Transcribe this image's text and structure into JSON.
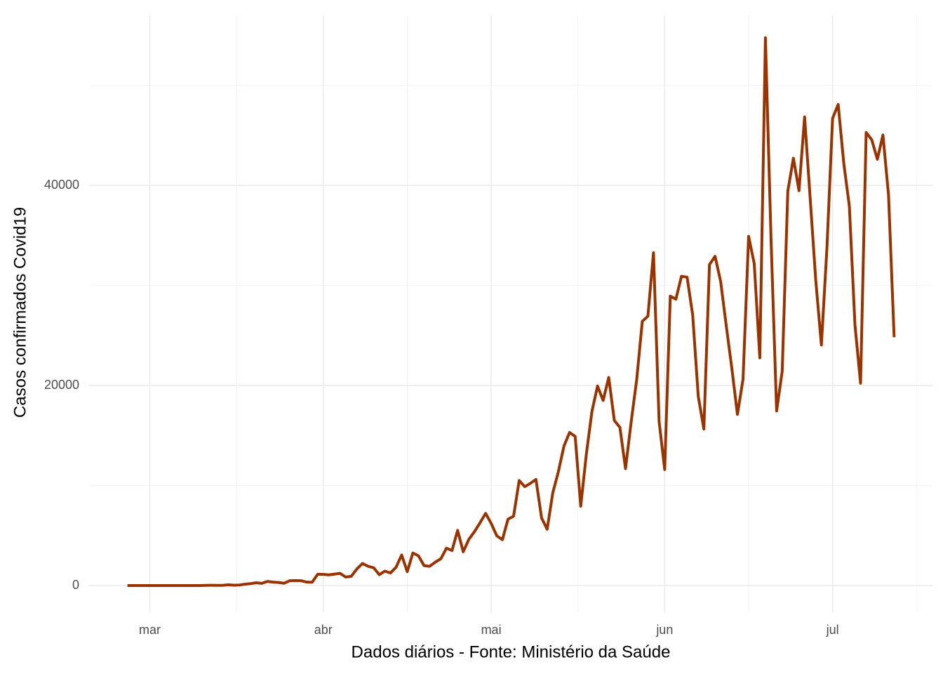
{
  "chart_data": {
    "type": "line",
    "x_label": "Dados diários - Fonte: Ministério da Saúde",
    "y_label": "Casos confirmados Covid19",
    "categories": [
      null,
      null,
      null,
      null,
      "mar",
      null,
      null,
      null,
      null,
      null,
      null,
      null,
      null,
      null,
      null,
      null,
      null,
      null,
      null,
      null,
      null,
      null,
      null,
      null,
      null,
      null,
      null,
      null,
      null,
      null,
      null,
      null,
      null,
      null,
      null,
      "abr",
      null,
      null,
      null,
      null,
      null,
      null,
      null,
      null,
      null,
      null,
      null,
      null,
      null,
      null,
      null,
      null,
      null,
      null,
      null,
      null,
      null,
      null,
      null,
      null,
      null,
      null,
      null,
      null,
      null,
      "mai",
      null,
      null,
      null,
      null,
      null,
      null,
      null,
      null,
      null,
      null,
      null,
      null,
      null,
      null,
      null,
      null,
      null,
      null,
      null,
      null,
      null,
      null,
      null,
      null,
      null,
      null,
      null,
      null,
      null,
      null,
      "jun",
      null,
      null,
      null,
      null,
      null,
      null,
      null,
      null,
      null,
      null,
      null,
      null,
      null,
      null,
      null,
      null,
      null,
      null,
      null,
      null,
      null,
      null,
      null,
      null,
      null,
      null,
      null,
      null,
      null,
      "jul",
      null,
      null,
      null,
      null,
      null,
      null,
      null,
      null,
      null,
      null,
      null
    ],
    "values": [
      1,
      0,
      0,
      1,
      0,
      0,
      0,
      1,
      1,
      5,
      5,
      6,
      5,
      4,
      18,
      25,
      21,
      23,
      79,
      34,
      57,
      137,
      193,
      283,
      224,
      418,
      345,
      310,
      232,
      482,
      502,
      487,
      352,
      323,
      1138,
      1119,
      1074,
      1146,
      1222,
      852,
      926,
      1661,
      2210,
      1930,
      1781,
      1089,
      1442,
      1261,
      1832,
      3058,
      1385,
      3257,
      2976,
      1996,
      1927,
      2336,
      2678,
      3735,
      3503,
      5514,
      3379,
      4613,
      5385,
      6276,
      7218,
      6209,
      4970,
      4588,
      6633,
      6935,
      10503,
      9888,
      10222,
      10611,
      6760,
      5632,
      9258,
      11385,
      13944,
      15305,
      14919,
      7938,
      13140,
      17408,
      19951,
      18508,
      20803,
      16508,
      15813,
      11687,
      16324,
      20599,
      26417,
      26928,
      33274,
      16409,
      11598,
      28936,
      28633,
      30925,
      30830,
      27075,
      18912,
      15654,
      32091,
      32913,
      30412,
      25982,
      21704,
      17110,
      20647,
      34918,
      32188,
      22765,
      54771,
      34666,
      17459,
      21432,
      39436,
      42725,
      39483,
      46860,
      38693,
      30476,
      24052,
      33846,
      46712,
      48105,
      42223,
      37923,
      26051,
      20229,
      45305,
      44571,
      42619,
      45048,
      39023,
      24831
    ],
    "color": "#993300",
    "ylim": [
      -2700,
      57000
    ],
    "yticks": [
      0,
      20000,
      40000
    ],
    "grid": true
  }
}
